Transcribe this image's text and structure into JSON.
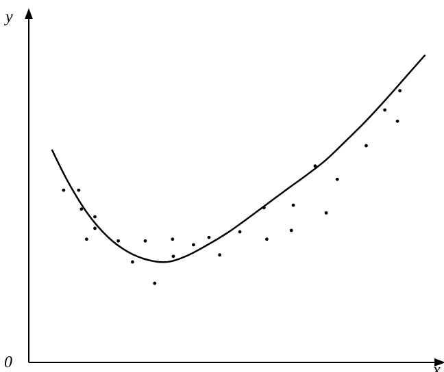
{
  "chart_data": {
    "type": "scatter",
    "title": "",
    "xlabel": "x",
    "ylabel": "y",
    "origin_label": "0",
    "xlim": [
      0,
      100
    ],
    "ylim": [
      0,
      100
    ],
    "grid": false,
    "legend": "none",
    "colors": {
      "points": "#000000",
      "curve": "#000000",
      "axes": "#000000",
      "background": "#ffffff"
    },
    "series": [
      {
        "type": "scatter",
        "points": [
          [
            8.8,
            49.2
          ],
          [
            12.6,
            49.2
          ],
          [
            13.3,
            43.8
          ],
          [
            14.6,
            35.2
          ],
          [
            16.7,
            41.6
          ],
          [
            16.7,
            38.3
          ],
          [
            22.6,
            34.7
          ],
          [
            26.2,
            28.7
          ],
          [
            29.4,
            34.7
          ],
          [
            31.8,
            22.6
          ],
          [
            36.3,
            35.2
          ],
          [
            36.5,
            30.3
          ],
          [
            41.6,
            33.6
          ],
          [
            45.5,
            35.7
          ],
          [
            48.2,
            30.7
          ],
          [
            53.3,
            37.3
          ],
          [
            59.4,
            44.2
          ],
          [
            60.1,
            35.2
          ],
          [
            66.3,
            37.7
          ],
          [
            66.8,
            44.9
          ],
          [
            72.3,
            56.1
          ],
          [
            75.1,
            42.7
          ],
          [
            77.9,
            52.3
          ],
          [
            85.2,
            61.9
          ],
          [
            89.9,
            72.1
          ],
          [
            93.1,
            68.9
          ],
          [
            93.7,
            77.6
          ]
        ]
      },
      {
        "type": "line",
        "smooth": true,
        "points": [
          [
            5.9,
            60.6
          ],
          [
            10.0,
            51.4
          ],
          [
            15.0,
            42.3
          ],
          [
            20.0,
            35.8
          ],
          [
            25.0,
            31.6
          ],
          [
            30.0,
            29.3
          ],
          [
            35.0,
            28.7
          ],
          [
            40.0,
            30.5
          ],
          [
            45.0,
            33.5
          ],
          [
            50.0,
            36.9
          ],
          [
            55.0,
            40.9
          ],
          [
            60.0,
            45.1
          ],
          [
            65.0,
            49.3
          ],
          [
            70.0,
            53.4
          ],
          [
            75.0,
            57.8
          ],
          [
            80.0,
            63.2
          ],
          [
            85.0,
            68.8
          ],
          [
            90.0,
            74.9
          ],
          [
            95.0,
            81.3
          ],
          [
            100.0,
            87.7
          ]
        ]
      }
    ]
  }
}
